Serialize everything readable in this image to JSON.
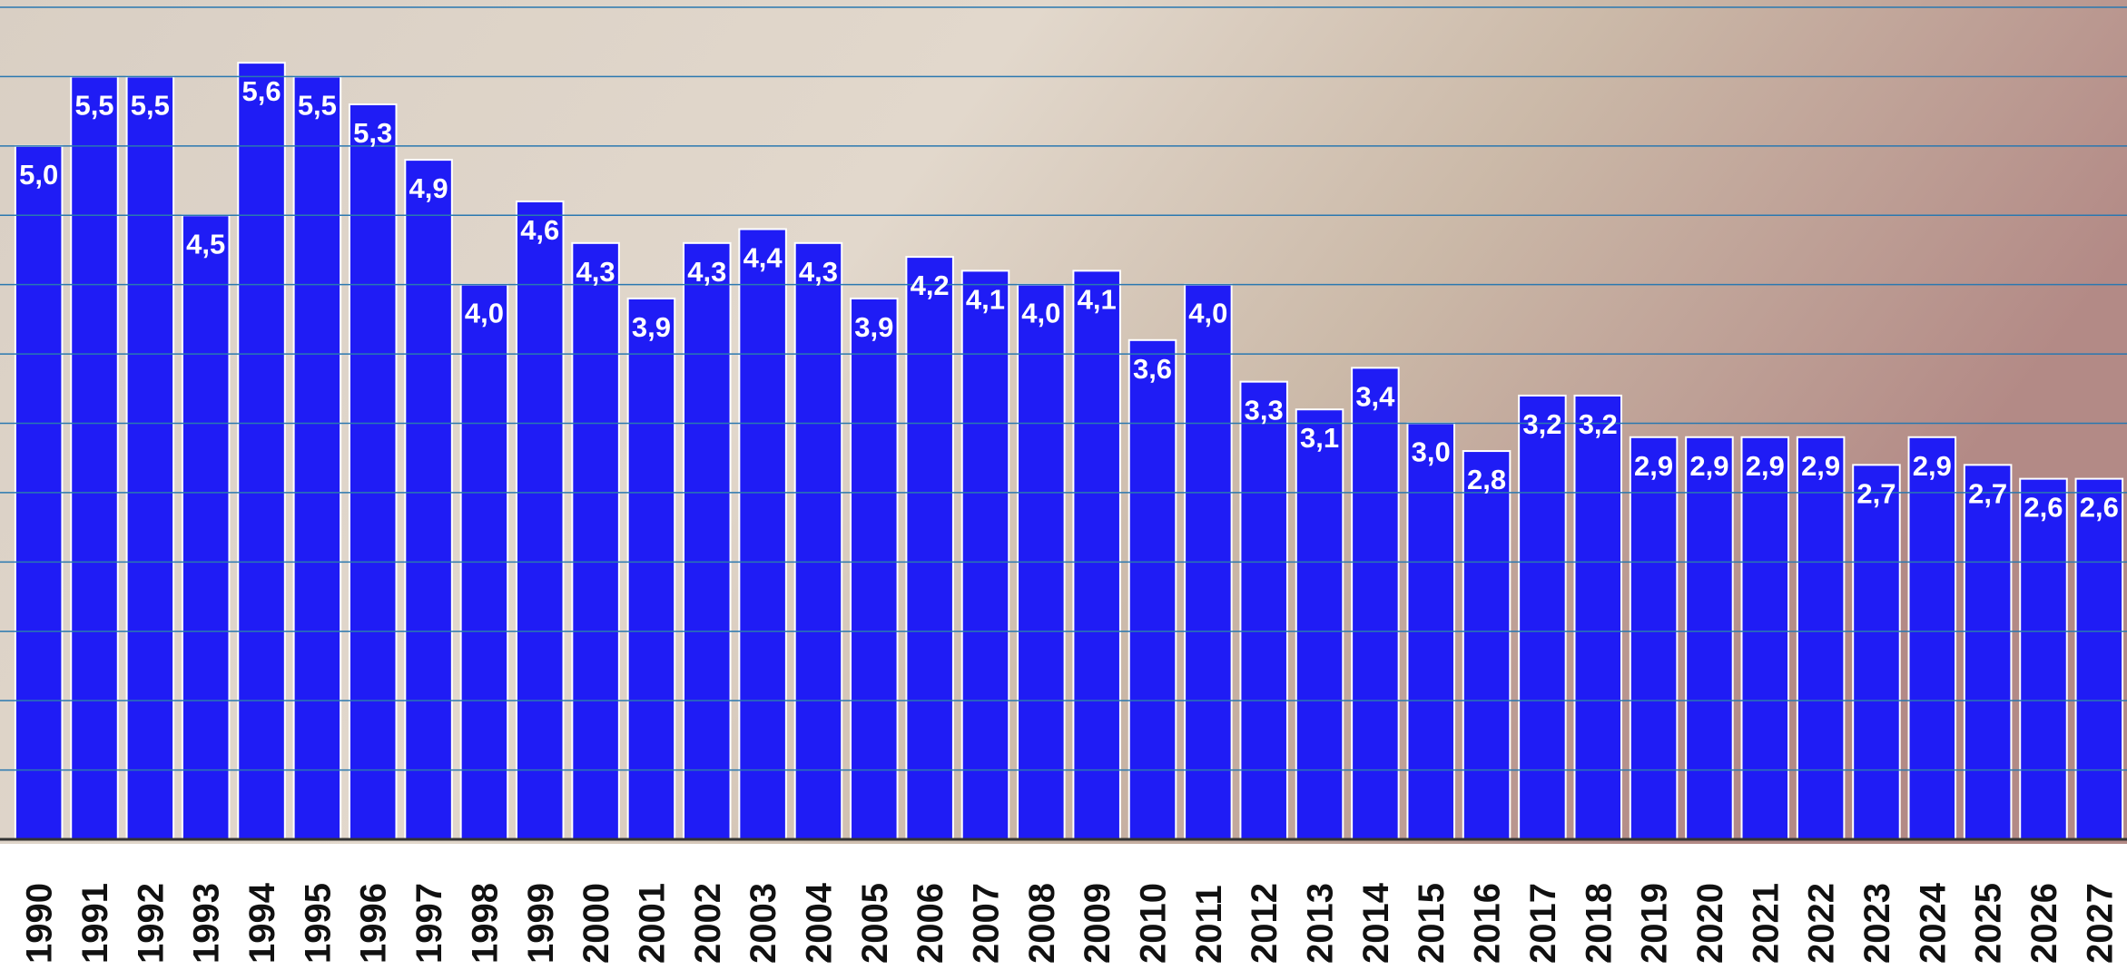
{
  "chart_data": {
    "type": "bar",
    "categories": [
      "1990",
      "1991",
      "1992",
      "1993",
      "1994",
      "1995",
      "1996",
      "1997",
      "1998",
      "1999",
      "2000",
      "2001",
      "2002",
      "2003",
      "2004",
      "2005",
      "2006",
      "2007",
      "2008",
      "2009",
      "2010",
      "2011",
      "2012",
      "2013",
      "2014",
      "2015",
      "2016",
      "2017",
      "2018",
      "2019",
      "2020",
      "2021",
      "2022",
      "2023",
      "2024",
      "2025",
      "2026",
      "2027"
    ],
    "values": [
      5.0,
      5.5,
      5.5,
      4.5,
      5.6,
      5.5,
      5.3,
      4.9,
      4.0,
      4.6,
      4.3,
      3.9,
      4.3,
      4.4,
      4.3,
      3.9,
      4.2,
      4.1,
      4.0,
      4.1,
      3.6,
      4.0,
      3.3,
      3.1,
      3.4,
      3.0,
      2.8,
      3.2,
      3.2,
      2.9,
      2.9,
      2.9,
      2.9,
      2.7,
      2.9,
      2.7,
      2.6,
      2.6
    ],
    "value_labels": [
      "5,0",
      "5,5",
      "5,5",
      "4,5",
      "5,6",
      "5,5",
      "5,3",
      "4,9",
      "4,0",
      "4,6",
      "4,3",
      "3,9",
      "4,3",
      "4,4",
      "4,3",
      "3,9",
      "4,2",
      "4,1",
      "4,0",
      "4,1",
      "3,6",
      "4,0",
      "3,3",
      "3,1",
      "3,4",
      "3,0",
      "2,8",
      "3,2",
      "3,2",
      "2,9",
      "2,9",
      "2,9",
      "2,9",
      "2,7",
      "2,9",
      "2,7",
      "2,6",
      "2,6"
    ],
    "color": "#1f1cf5",
    "ylim": [
      0,
      6
    ],
    "yticks": [
      0,
      0.5,
      1,
      1.5,
      2,
      2.5,
      3,
      3.5,
      4,
      4.5,
      5,
      5.5,
      6
    ],
    "grid": true
  }
}
